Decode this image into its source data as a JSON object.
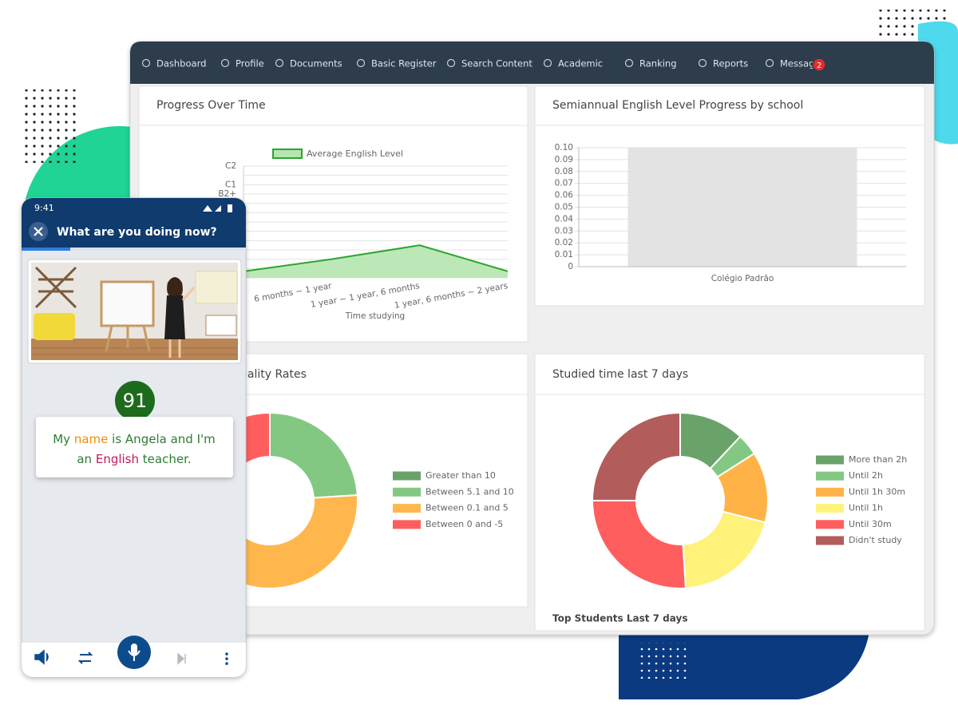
{
  "nav": {
    "items": [
      "Dashboard",
      "Profile",
      "Documents",
      "Basic Register",
      "Search Content",
      "Academic",
      "Ranking",
      "Reports",
      "Messages"
    ],
    "badge": "2"
  },
  "chart_data": [
    {
      "type": "line",
      "title": "Progress Over Time",
      "x_label": "Time studying",
      "categories": [
        null,
        "6 months ~ 1 year",
        "1 year ~ 1 year, 6 months",
        "1 year, 6 months ~ 2 years"
      ],
      "series": [
        {
          "name": "Average English Level",
          "color": "#2ca52c",
          "fill": "#b5e5b0",
          "values": [
            0.7,
            2,
            3.5,
            0.7
          ]
        }
      ],
      "ylim": [
        0,
        12
      ],
      "yticks": [
        {
          "value": 12,
          "label": "C2"
        },
        {
          "value": 10,
          "label": "C1"
        },
        {
          "value": 9,
          "label": "B2+"
        }
      ],
      "minor_yticks": [
        0,
        1,
        2,
        3,
        4,
        5,
        6,
        7,
        8,
        11
      ],
      "grid": true
    },
    {
      "type": "bar",
      "title": "Semiannual English Level Progress by school",
      "categories": [
        "Colégio Padrão"
      ],
      "values": [
        0
      ],
      "color": "#9e9e9e",
      "highlight": "#e3e3e3",
      "ylim": [
        0,
        0.1
      ],
      "yticks": [
        0,
        {
          "value": 0.01,
          "label": "0.01"
        },
        {
          "value": 0.02,
          "label": "0.02"
        },
        {
          "value": 0.03,
          "label": "0.03"
        },
        {
          "value": 0.04,
          "label": "0.04"
        },
        {
          "value": 0.05,
          "label": "0.05"
        },
        {
          "value": 0.06,
          "label": "0.06"
        },
        {
          "value": 0.07,
          "label": "0.07"
        },
        {
          "value": 0.08,
          "label": "0.08"
        },
        {
          "value": 0.09,
          "label": "0.09"
        },
        {
          "value": 0.1,
          "label": "0.10"
        }
      ],
      "grid": true
    },
    {
      "type": "doughnut",
      "title": "Quality Rates",
      "categories": [
        "Greater than 10",
        "Between 5.1 and 10",
        "Between 0.1 and 5",
        "Between 0 and -5"
      ],
      "values": [
        0,
        24,
        64,
        12
      ],
      "colors": [
        "#6aa36a",
        "#82c882",
        "#ffb74d",
        "#ff5e5e"
      ]
    },
    {
      "type": "doughnut",
      "title": "Studied time last 7 days",
      "categories": [
        "More than 2h",
        "Until 2h",
        "Until 1h 30m",
        "Until 1h",
        "Until 30m",
        "Didn't study"
      ],
      "values": [
        12,
        4,
        13,
        20,
        26,
        25
      ],
      "colors": [
        "#6aa36a",
        "#82c882",
        "#ffb347",
        "#fff27a",
        "#ff5e5e",
        "#b35c5c"
      ]
    }
  ],
  "cards": {
    "top_students": "Top Students Last 7 days"
  },
  "phone": {
    "time": "9:41",
    "title": "What are you doing now?",
    "score": "91",
    "sentence": [
      {
        "text": "My",
        "color": "#2e7d32"
      },
      {
        "text": "name",
        "color": "#f08c00"
      },
      {
        "text": "is",
        "color": "#2e7d32"
      },
      {
        "text": "Angela",
        "color": "#2e7d32"
      },
      {
        "text": "and",
        "color": "#2e7d32"
      },
      {
        "text": "I'm",
        "color": "#2e7d32"
      },
      {
        "text": "an",
        "color": "#2e7d32"
      },
      {
        "text": "English",
        "color": "#c2185b"
      },
      {
        "text": "teacher.",
        "color": "#2e7d32"
      }
    ]
  }
}
